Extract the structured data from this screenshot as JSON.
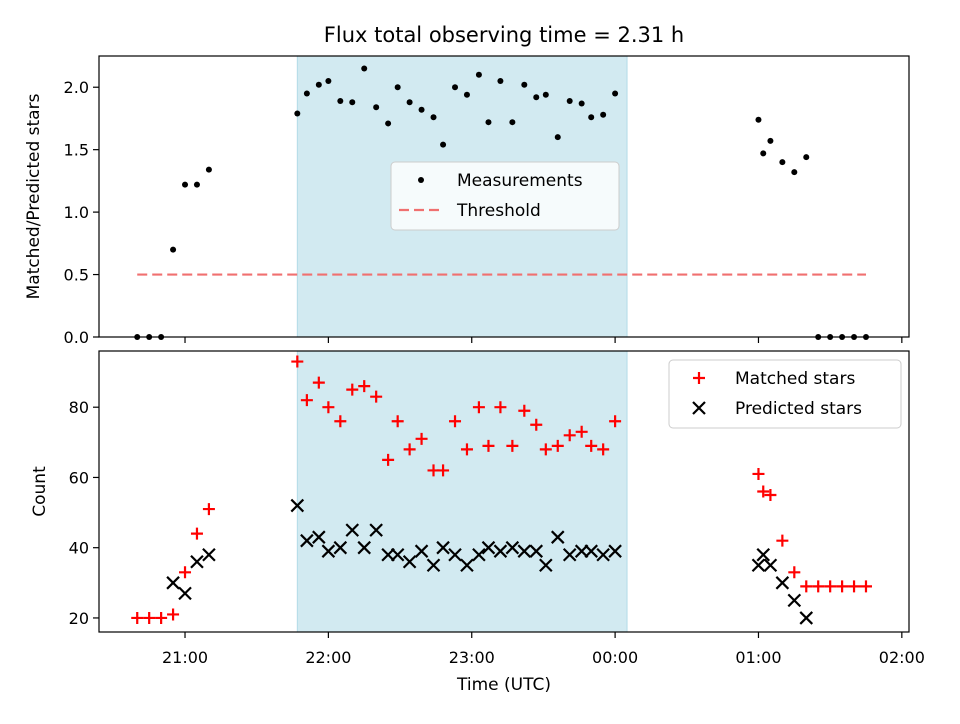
{
  "chart_data": {
    "title": "Flux total observing time = 2.31 h",
    "xlabel": "Time (UTC)",
    "x_ticks": [
      "21:00",
      "22:00",
      "23:00",
      "00:00",
      "01:00",
      "02:00"
    ],
    "x_range": [
      "20:24",
      "02:03"
    ],
    "highlight_span": {
      "start": "21:47",
      "end": "00:05",
      "color": "#add8e6"
    },
    "panels": [
      {
        "type": "scatter",
        "ylabel": "Matched/Predicted stars",
        "ylim": [
          0,
          2.25
        ],
        "y_ticks": [
          "0.0",
          "0.5",
          "1.0",
          "1.5",
          "2.0"
        ],
        "legend_position": "center",
        "series": [
          {
            "name": "Measurements",
            "marker": "dot",
            "color": "#000000",
            "points": [
              [
                "20:40",
                0.0
              ],
              [
                "20:45",
                0.0
              ],
              [
                "20:50",
                0.0
              ],
              [
                "20:55",
                0.7
              ],
              [
                "21:00",
                1.22
              ],
              [
                "21:05",
                1.22
              ],
              [
                "21:10",
                1.34
              ],
              [
                "21:47",
                1.79
              ],
              [
                "21:51",
                1.95
              ],
              [
                "21:56",
                2.02
              ],
              [
                "22:00",
                2.05
              ],
              [
                "22:05",
                1.89
              ],
              [
                "22:10",
                1.88
              ],
              [
                "22:15",
                2.15
              ],
              [
                "22:20",
                1.84
              ],
              [
                "22:25",
                1.71
              ],
              [
                "22:29",
                2.0
              ],
              [
                "22:34",
                1.88
              ],
              [
                "22:39",
                1.82
              ],
              [
                "22:44",
                1.76
              ],
              [
                "22:48",
                1.54
              ],
              [
                "22:53",
                2.0
              ],
              [
                "22:58",
                1.94
              ],
              [
                "23:03",
                2.1
              ],
              [
                "23:07",
                1.72
              ],
              [
                "23:12",
                2.05
              ],
              [
                "23:17",
                1.72
              ],
              [
                "23:22",
                2.02
              ],
              [
                "23:27",
                1.92
              ],
              [
                "23:31",
                1.94
              ],
              [
                "23:36",
                1.6
              ],
              [
                "23:41",
                1.89
              ],
              [
                "23:46",
                1.87
              ],
              [
                "23:50",
                1.76
              ],
              [
                "23:55",
                1.78
              ],
              [
                "00:00",
                1.95
              ],
              [
                "01:00",
                1.74
              ],
              [
                "01:02",
                1.47
              ],
              [
                "01:05",
                1.57
              ],
              [
                "01:10",
                1.4
              ],
              [
                "01:15",
                1.32
              ],
              [
                "01:20",
                1.44
              ],
              [
                "01:25",
                0.0
              ],
              [
                "01:30",
                0.0
              ],
              [
                "01:35",
                0.0
              ],
              [
                "01:40",
                0.0
              ],
              [
                "01:45",
                0.0
              ]
            ]
          },
          {
            "name": "Threshold",
            "marker": "dashed-line",
            "color": "#f07070",
            "points": [
              [
                "20:40",
                0.5
              ],
              [
                "01:45",
                0.5
              ]
            ]
          }
        ]
      },
      {
        "type": "scatter",
        "ylabel": "Count",
        "ylim": [
          16,
          96
        ],
        "y_ticks": [
          "20",
          "40",
          "60",
          "80"
        ],
        "legend_position": "top-right",
        "series": [
          {
            "name": "Matched stars",
            "marker": "plus",
            "color": "#ff0000",
            "points": [
              [
                "20:40",
                20
              ],
              [
                "20:45",
                20
              ],
              [
                "20:50",
                20
              ],
              [
                "20:55",
                21
              ],
              [
                "21:00",
                33
              ],
              [
                "21:05",
                44
              ],
              [
                "21:10",
                51
              ],
              [
                "21:47",
                93
              ],
              [
                "21:51",
                82
              ],
              [
                "21:56",
                87
              ],
              [
                "22:00",
                80
              ],
              [
                "22:05",
                76
              ],
              [
                "22:10",
                85
              ],
              [
                "22:15",
                86
              ],
              [
                "22:20",
                83
              ],
              [
                "22:25",
                65
              ],
              [
                "22:29",
                76
              ],
              [
                "22:34",
                68
              ],
              [
                "22:39",
                71
              ],
              [
                "22:44",
                62
              ],
              [
                "22:48",
                62
              ],
              [
                "22:53",
                76
              ],
              [
                "22:58",
                68
              ],
              [
                "23:03",
                80
              ],
              [
                "23:07",
                69
              ],
              [
                "23:12",
                80
              ],
              [
                "23:17",
                69
              ],
              [
                "23:22",
                79
              ],
              [
                "23:27",
                75
              ],
              [
                "23:31",
                68
              ],
              [
                "23:36",
                69
              ],
              [
                "23:41",
                72
              ],
              [
                "23:46",
                73
              ],
              [
                "23:50",
                69
              ],
              [
                "23:55",
                68
              ],
              [
                "00:00",
                76
              ],
              [
                "01:00",
                61
              ],
              [
                "01:02",
                56
              ],
              [
                "01:05",
                55
              ],
              [
                "01:10",
                42
              ],
              [
                "01:15",
                33
              ],
              [
                "01:20",
                29
              ],
              [
                "01:25",
                29
              ],
              [
                "01:30",
                29
              ],
              [
                "01:35",
                29
              ],
              [
                "01:40",
                29
              ],
              [
                "01:45",
                29
              ]
            ]
          },
          {
            "name": "Predicted stars",
            "marker": "x",
            "color": "#000000",
            "points": [
              [
                "20:55",
                30
              ],
              [
                "21:00",
                27
              ],
              [
                "21:05",
                36
              ],
              [
                "21:10",
                38
              ],
              [
                "21:47",
                52
              ],
              [
                "21:51",
                42
              ],
              [
                "21:56",
                43
              ],
              [
                "22:00",
                39
              ],
              [
                "22:05",
                40
              ],
              [
                "22:10",
                45
              ],
              [
                "22:15",
                40
              ],
              [
                "22:20",
                45
              ],
              [
                "22:25",
                38
              ],
              [
                "22:29",
                38
              ],
              [
                "22:34",
                36
              ],
              [
                "22:39",
                39
              ],
              [
                "22:44",
                35
              ],
              [
                "22:48",
                40
              ],
              [
                "22:53",
                38
              ],
              [
                "22:58",
                35
              ],
              [
                "23:03",
                38
              ],
              [
                "23:07",
                40
              ],
              [
                "23:12",
                39
              ],
              [
                "23:17",
                40
              ],
              [
                "23:22",
                39
              ],
              [
                "23:27",
                39
              ],
              [
                "23:31",
                35
              ],
              [
                "23:36",
                43
              ],
              [
                "23:41",
                38
              ],
              [
                "23:46",
                39
              ],
              [
                "23:50",
                39
              ],
              [
                "23:55",
                38
              ],
              [
                "00:00",
                39
              ],
              [
                "01:00",
                35
              ],
              [
                "01:02",
                38
              ],
              [
                "01:05",
                35
              ],
              [
                "01:10",
                30
              ],
              [
                "01:15",
                25
              ],
              [
                "01:20",
                20
              ]
            ]
          }
        ]
      }
    ]
  }
}
